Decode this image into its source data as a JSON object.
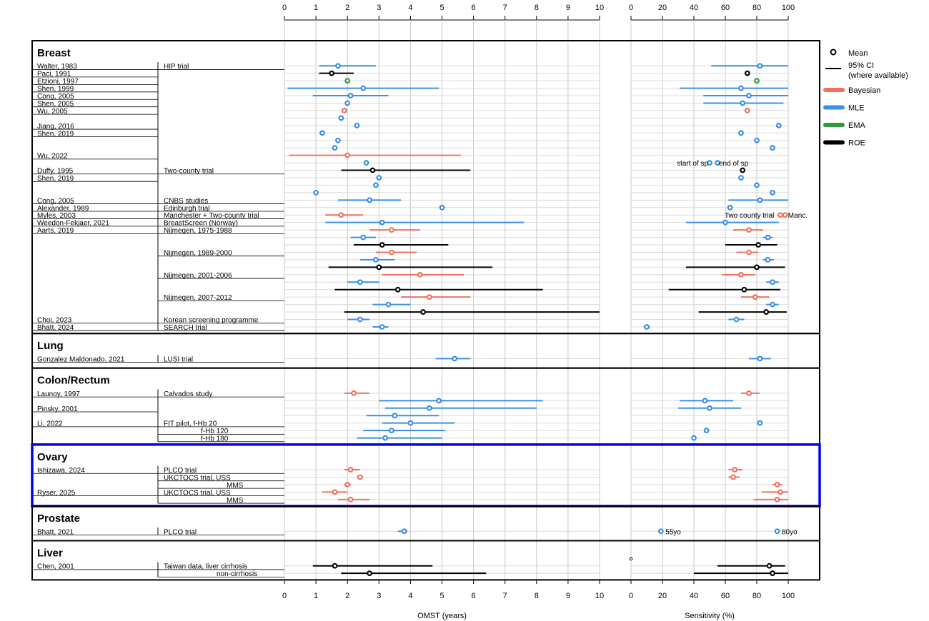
{
  "chart_data": {
    "type": "forest",
    "panels": [
      {
        "key": "omst",
        "xlabel": "OMST (years)",
        "xlim": [
          0,
          10
        ],
        "ticks": [
          0,
          1,
          2,
          3,
          4,
          5,
          6,
          7,
          8,
          9,
          10
        ]
      },
      {
        "key": "sens",
        "xlabel": "Sensitivity (%)",
        "xlim": [
          0,
          100
        ],
        "ticks": [
          0,
          20,
          40,
          60,
          80,
          100
        ]
      }
    ],
    "grid": true,
    "colors": {
      "Bayesian": "#f07060",
      "MLE": "#3a8fe8",
      "EMA": "#2e9a3a",
      "ROE": "#000000",
      "highlight": "#0000ee"
    },
    "legend": {
      "position": "right",
      "items": [
        {
          "label": "Mean",
          "kind": "mean"
        },
        {
          "label": "95% CI",
          "label2": "(where available)",
          "kind": "ci"
        },
        {
          "label": "Bayesian",
          "kind": "method",
          "method": "Bayesian"
        },
        {
          "label": "MLE",
          "kind": "method",
          "method": "MLE"
        },
        {
          "label": "EMA",
          "kind": "method",
          "method": "EMA"
        },
        {
          "label": "ROE",
          "kind": "method",
          "method": "ROE"
        }
      ]
    },
    "sections": [
      {
        "name": "Breast",
        "rows": [
          {
            "study": "Walter, 1983",
            "trial": "HIP trial",
            "m": "MLE",
            "omst": [
              1.7,
              1.1,
              2.9
            ],
            "sens": [
              82,
              51,
              100
            ]
          },
          {
            "study": "Paci, 1991",
            "m": "ROE",
            "omst": [
              1.5,
              1.1,
              2.2
            ],
            "sens": [
              74,
              73,
              75
            ]
          },
          {
            "study": "Etzioni, 1997",
            "m": "EMA",
            "omst": [
              2.0
            ],
            "sens": [
              80
            ]
          },
          {
            "study": "Shen, 1999",
            "m": "MLE",
            "omst": [
              2.5,
              0.1,
              4.9
            ],
            "sens": [
              70,
              31,
              100
            ]
          },
          {
            "study": "Cong, 2005",
            "m": "MLE",
            "omst": [
              2.1,
              0.9,
              3.3
            ],
            "sens": [
              75,
              46,
              100
            ]
          },
          {
            "study": "Shen, 2005",
            "m": "MLE",
            "omst": [
              2.0
            ],
            "sens": [
              71,
              46,
              97
            ]
          },
          {
            "study": "Wu, 2005",
            "m": "Bayesian",
            "omst": [
              1.9
            ],
            "sens": [
              74
            ]
          },
          {
            "m": "MLE",
            "omst": [
              1.8
            ],
            "sens": null
          },
          {
            "study": "Jiang, 2016",
            "m": "MLE",
            "omst": [
              2.3
            ],
            "sens": [
              94
            ]
          },
          {
            "study": "Shen, 2019",
            "m": "MLE",
            "omst": [
              1.2
            ],
            "sens": [
              70
            ]
          },
          {
            "m": "MLE",
            "omst": [
              1.7
            ],
            "sens": [
              80
            ]
          },
          {
            "m": "MLE",
            "omst": [
              1.6
            ],
            "sens": [
              90
            ]
          },
          {
            "study": "Wu, 2022",
            "m": "Bayesian",
            "omst": [
              2.0,
              0.15,
              5.6
            ],
            "sens": null
          },
          {
            "m": "MLE",
            "omst": [
              2.6
            ],
            "sens": [
              50,
              null,
              null,
              55
            ],
            "annot": [
              {
                "at": 50,
                "side": "left",
                "text": "start of sp"
              },
              {
                "at": 55,
                "side": "right",
                "text": "end of sp"
              }
            ]
          },
          {
            "study": "Duffy, 1995",
            "trial": "Two-county trial",
            "m": "ROE",
            "omst": [
              2.8,
              1.8,
              5.9
            ],
            "sens": [
              71
            ]
          },
          {
            "study": "Shen, 2019",
            "m": "MLE",
            "omst": [
              3.0
            ],
            "sens": [
              70
            ]
          },
          {
            "m": "MLE",
            "omst": [
              2.9
            ],
            "sens": [
              80
            ]
          },
          {
            "m": "MLE",
            "omst": [
              1.0
            ],
            "sens": [
              90
            ]
          },
          {
            "study": "Cong, 2005",
            "trial": "CNBS studies",
            "m": "MLE",
            "omst": [
              2.7,
              1.7,
              3.7
            ],
            "sens": [
              82,
              62,
              100
            ]
          },
          {
            "study": "Alexander, 1989",
            "trial": "Edinburgh trial",
            "m": "MLE",
            "omst": [
              5.0
            ],
            "sens": [
              63
            ]
          },
          {
            "study": "Myles, 2003",
            "trial": "Manchester + Two-county trial",
            "m": "Bayesian",
            "omst": [
              1.8,
              1.3,
              2.5
            ],
            "sens": [
              95,
              null,
              null,
              98
            ],
            "annot": [
              {
                "at": 92,
                "side": "left",
                "text": "Two county trial"
              },
              {
                "at": 99,
                "side": "right",
                "text": "Manc."
              }
            ]
          },
          {
            "study": "Weedon-Fekjaer, 2021",
            "trial": "BreastScreen (Norway)",
            "m": "MLE",
            "omst": [
              3.1,
              1.3,
              7.6
            ],
            "sens": [
              60,
              35,
              94
            ]
          },
          {
            "study": "Aarts, 2019",
            "trial": "Nijmegen, 1975-1988",
            "m": "Bayesian",
            "omst": [
              3.4,
              2.7,
              4.3
            ],
            "sens": [
              75,
              65,
              84
            ]
          },
          {
            "m": "MLE",
            "omst": [
              2.5,
              2.1,
              2.9
            ],
            "sens": [
              87,
              84,
              90
            ]
          },
          {
            "m": "ROE",
            "omst": [
              3.1,
              2.2,
              5.2
            ],
            "sens": [
              81,
              60,
              93
            ]
          },
          {
            "trial": "Nijmegen, 1989-2000",
            "m": "Bayesian",
            "omst": [
              3.4,
              2.9,
              4.2
            ],
            "sens": [
              75,
              67,
              81
            ]
          },
          {
            "m": "MLE",
            "omst": [
              2.9,
              2.4,
              3.5
            ],
            "sens": [
              87,
              84,
              91
            ]
          },
          {
            "m": "ROE",
            "omst": [
              3.0,
              1.4,
              6.6
            ],
            "sens": [
              80,
              35,
              98
            ]
          },
          {
            "trial": "Nijmegen, 2001-2006",
            "m": "Bayesian",
            "omst": [
              4.3,
              3.1,
              5.7
            ],
            "sens": [
              70,
              58,
              79
            ]
          },
          {
            "m": "MLE",
            "omst": [
              2.4,
              2.0,
              3.0
            ],
            "sens": [
              90,
              86,
              94
            ]
          },
          {
            "m": "ROE",
            "omst": [
              3.6,
              1.6,
              8.2
            ],
            "sens": [
              72,
              24,
              95
            ]
          },
          {
            "trial": "Nijmegen, 2007-2012",
            "m": "Bayesian",
            "omst": [
              4.6,
              3.7,
              5.9
            ],
            "sens": [
              79,
              70,
              88
            ]
          },
          {
            "m": "MLE",
            "omst": [
              3.3,
              2.8,
              4.0
            ],
            "sens": [
              90,
              86,
              94
            ]
          },
          {
            "m": "ROE",
            "omst": [
              4.4,
              1.9,
              10.0
            ],
            "sens": [
              86,
              43,
              99
            ]
          },
          {
            "study": "Choi, 2023",
            "trial": "Korean screening programme",
            "m": "MLE",
            "omst": [
              2.4,
              2.0,
              2.7
            ],
            "sens": [
              67,
              62,
              72
            ]
          },
          {
            "study": "Bhatt, 2024",
            "trial": "SEARCH trial",
            "m": "MLE",
            "omst": [
              3.1,
              2.8,
              3.3
            ],
            "sens": [
              10,
              8,
              12
            ]
          }
        ]
      },
      {
        "name": "Lung",
        "rows": [
          {
            "study": "Gonzalez Maldonado, 2021",
            "trial": "LUSI trial",
            "m": "MLE",
            "omst": [
              5.4,
              4.8,
              5.9
            ],
            "sens": [
              82,
              75,
              89
            ]
          }
        ]
      },
      {
        "name": "Colon/Rectum",
        "rows": [
          {
            "study": "Launoy, 1997",
            "trial": "Calvados study",
            "m": "Bayesian",
            "omst": [
              2.2,
              1.9,
              2.7
            ],
            "sens": [
              75,
              70,
              82
            ]
          },
          {
            "m": "MLE",
            "omst": [
              4.9,
              3.0,
              8.2
            ],
            "sens": [
              47,
              31,
              65
            ]
          },
          {
            "study": "Pinsky, 2001",
            "m": "MLE",
            "omst": [
              4.6,
              3.2,
              8.0
            ],
            "sens": [
              50,
              30,
              70
            ]
          },
          {
            "m": "MLE",
            "omst": [
              3.5,
              2.6,
              4.9
            ],
            "sens": null
          },
          {
            "study": "Li, 2022",
            "trial": "FIT pilot, f-Hb 20",
            "m": "MLE",
            "omst": [
              4.0,
              3.1,
              5.4
            ],
            "sens": [
              82
            ]
          },
          {
            "trial": "f-Hb 120",
            "indent": 52,
            "m": "MLE",
            "omst": [
              3.4,
              2.5,
              5.1
            ],
            "sens": [
              48
            ]
          },
          {
            "trial": "f-Hb 180",
            "indent": 52,
            "m": "MLE",
            "omst": [
              3.2,
              2.3,
              5.0
            ],
            "sens": [
              40
            ]
          }
        ]
      },
      {
        "name": "Ovary",
        "highlight": true,
        "rows": [
          {
            "study": "Ishizawa, 2024",
            "trial": "PLCO trial",
            "m": "Bayesian",
            "omst": [
              2.1,
              1.9,
              2.4
            ],
            "sens": [
              66,
              62,
              71
            ]
          },
          {
            "trial": "UKCTOCS trial, USS",
            "m": "Bayesian",
            "omst": [
              2.4,
              2.3,
              2.5
            ],
            "sens": [
              65,
              62,
              69
            ]
          },
          {
            "trial": "MMS",
            "indent": 88,
            "m": "Bayesian",
            "omst": [
              2.0,
              1.9,
              2.1
            ],
            "sens": [
              93,
              90,
              96
            ]
          },
          {
            "study": "Ryser, 2025",
            "trial": "UKCTOCS trial, USS",
            "m": "Bayesian",
            "omst": [
              1.6,
              1.2,
              2.0
            ],
            "sens": [
              95,
              83,
              100
            ]
          },
          {
            "trial": "MMS",
            "indent": 88,
            "m": "Bayesian",
            "omst": [
              2.1,
              1.7,
              2.7
            ],
            "sens": [
              93,
              78,
              100
            ]
          }
        ]
      },
      {
        "name": "Prostate",
        "rows": [
          {
            "study": "Bhatt, 2021",
            "trial": "PLCO trial",
            "m": "MLE",
            "omst": [
              3.8,
              3.6,
              3.9
            ],
            "sens": [
              19,
              null,
              null,
              93
            ],
            "annot": [
              {
                "at": 21,
                "side": "right",
                "text": "55yo"
              },
              {
                "at": 95,
                "side": "right",
                "text": "80yo"
              }
            ]
          }
        ]
      },
      {
        "name": "Liver",
        "rows": [
          {
            "study": "Chen, 2001",
            "trial": "Taiwan data, liver cirrhosis",
            "m": "ROE",
            "omst": [
              1.6,
              0.9,
              4.7
            ],
            "sens": [
              88,
              55,
              98
            ]
          },
          {
            "trial": "non-cirrhosis",
            "indent": 74,
            "m": "ROE",
            "omst": [
              2.7,
              1.8,
              6.4
            ],
            "sens": [
              90,
              40,
              100
            ]
          }
        ]
      }
    ]
  }
}
